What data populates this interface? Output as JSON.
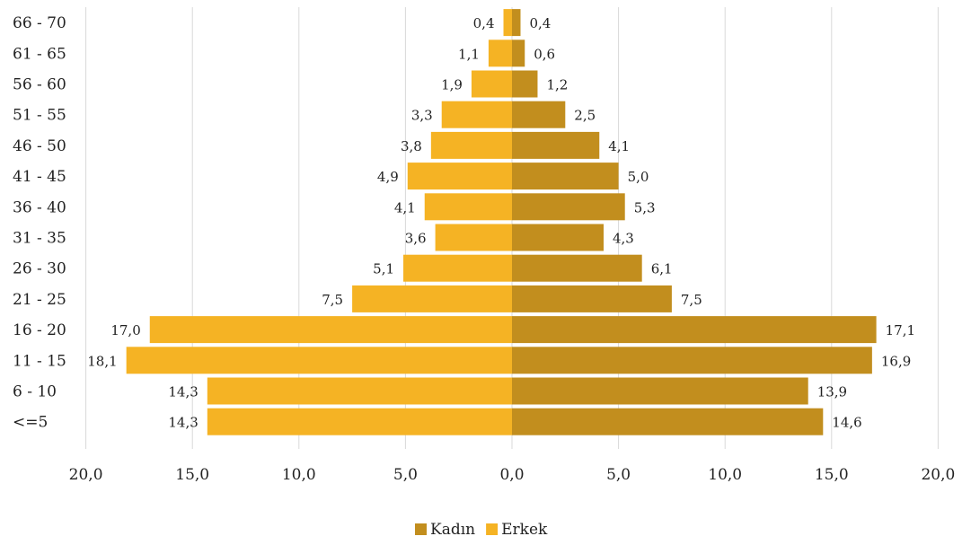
{
  "chart_data": {
    "type": "bar",
    "orientation": "horizontal",
    "layout": "population-pyramid",
    "categories": [
      "66 - 70",
      "61 - 65",
      "56 - 60",
      "51 - 55",
      "46 - 50",
      "41 - 45",
      "36 - 40",
      "31 - 35",
      "26 - 30",
      "21 - 25",
      "16 - 20",
      "11 - 15",
      "6 - 10",
      "<=5"
    ],
    "series": [
      {
        "name": "Kadın",
        "side": "right",
        "color": "#c28e1e",
        "values": [
          0.4,
          0.6,
          1.2,
          2.5,
          4.1,
          5.0,
          5.3,
          4.3,
          6.1,
          7.5,
          17.1,
          16.9,
          13.9,
          14.6
        ],
        "labels": [
          "0,4",
          "0,6",
          "1,2",
          "2,5",
          "4,1",
          "5,0",
          "5,3",
          "4,3",
          "6,1",
          "7,5",
          "17,1",
          "16,9",
          "13,9",
          "14,6"
        ]
      },
      {
        "name": "Erkek",
        "side": "left",
        "color": "#f5b324",
        "values": [
          0.4,
          1.1,
          1.9,
          3.3,
          3.8,
          4.9,
          4.1,
          3.6,
          5.1,
          7.5,
          17.0,
          18.1,
          14.3,
          14.3
        ],
        "labels": [
          "0,4",
          "1,1",
          "1,9",
          "3,3",
          "3,8",
          "4,9",
          "4,1",
          "3,6",
          "5,1",
          "7,5",
          "17,0",
          "18,1",
          "14,3",
          "14,3"
        ]
      }
    ],
    "x_ticks": [
      "20,0",
      "15,0",
      "10,0",
      "5,0",
      "0,0",
      "5,0",
      "10,0",
      "15,0",
      "20,0"
    ],
    "x_tick_values": [
      -20,
      -15,
      -10,
      -5,
      0,
      5,
      10,
      15,
      20
    ],
    "xlim": [
      -20,
      20
    ],
    "title": "",
    "xlabel": "",
    "ylabel": "",
    "grid": "vertical",
    "legend_position": "bottom"
  }
}
